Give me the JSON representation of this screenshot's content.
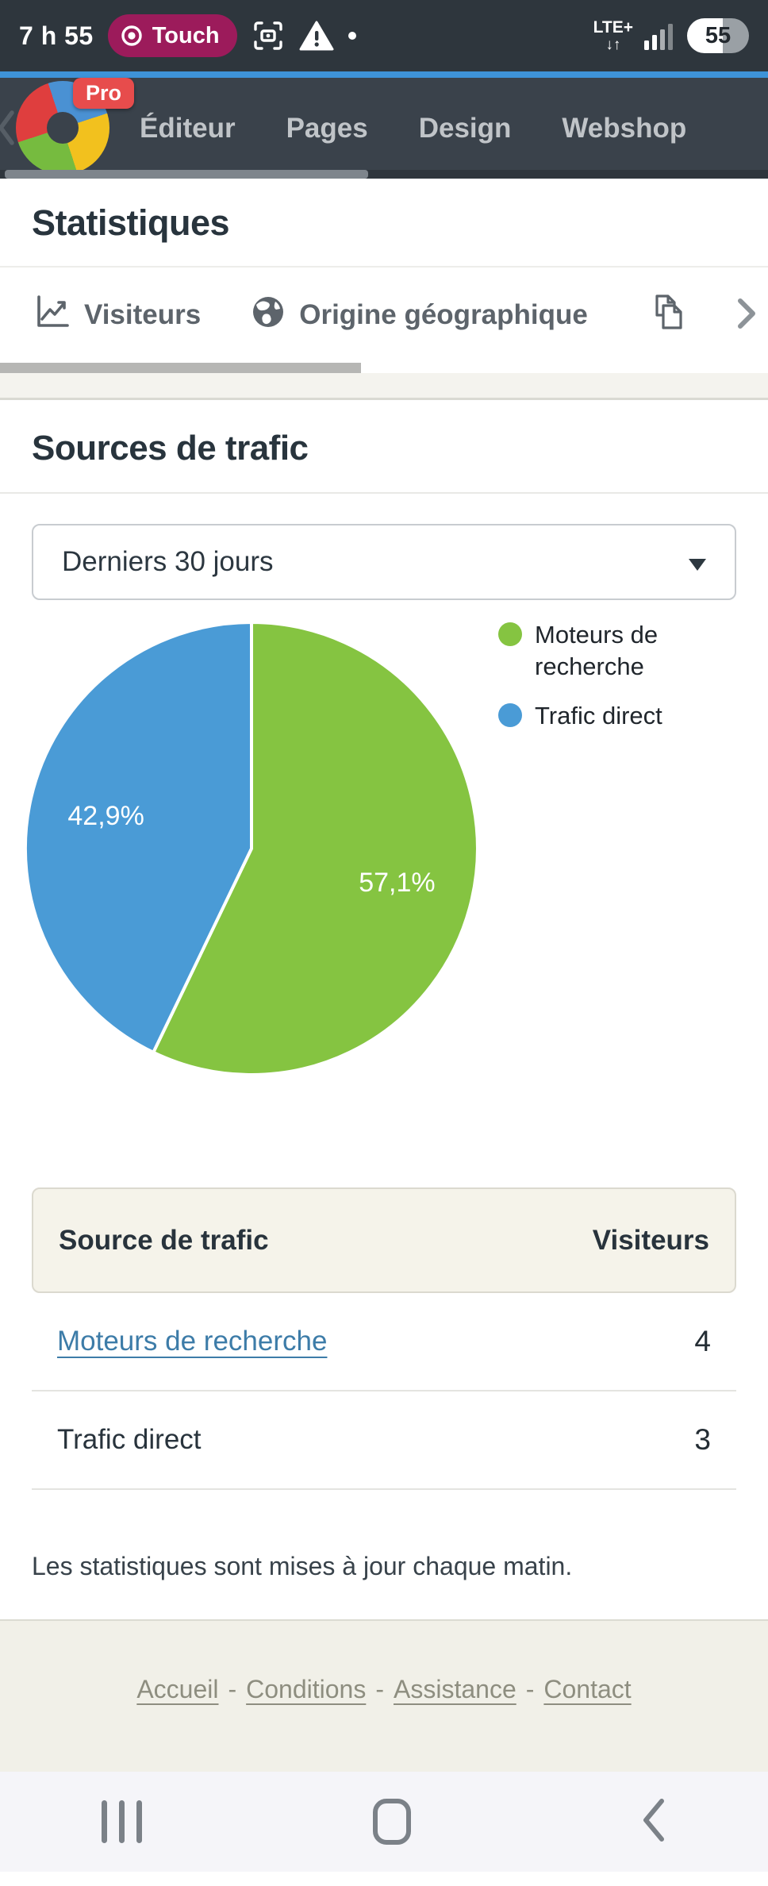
{
  "status_bar": {
    "time": "7 h 55",
    "touch_badge": "Touch",
    "network": "LTE+",
    "network_arrows": "↓↑",
    "battery_level": "55"
  },
  "navbar": {
    "pro_badge": "Pro",
    "items": [
      {
        "label": "Éditeur"
      },
      {
        "label": "Pages"
      },
      {
        "label": "Design"
      },
      {
        "label": "Webshop"
      }
    ]
  },
  "page": {
    "title": "Statistiques",
    "tabs": [
      {
        "label": "Visiteurs"
      },
      {
        "label": "Origine géographique"
      }
    ],
    "section_title": "Sources de trafic",
    "period_select": {
      "value": "Derniers 30 jours"
    },
    "note": "Les statistiques sont mises à jour chaque matin."
  },
  "chart_data": {
    "type": "pie",
    "title": "Sources de trafic",
    "period": "Derniers 30 jours",
    "legend_position": "right",
    "start_angle_deg": 0,
    "direction": "clockwise",
    "slices": [
      {
        "name": "Moteurs de recherche",
        "value": 4,
        "pct": 57.1,
        "pct_label": "57,1%",
        "color": "#85c441"
      },
      {
        "name": "Trafic direct",
        "value": 3,
        "pct": 42.9,
        "pct_label": "42,9%",
        "color": "#4a9bd6"
      }
    ]
  },
  "table": {
    "headers": [
      "Source de trafic",
      "Visiteurs"
    ],
    "rows": [
      {
        "label": "Moteurs de recherche",
        "value": "4",
        "is_link": true
      },
      {
        "label": "Trafic direct",
        "value": "3",
        "is_link": false
      }
    ]
  },
  "footer": {
    "separator": "-",
    "links": [
      {
        "label": "Accueil"
      },
      {
        "label": "Conditions"
      },
      {
        "label": "Assistance"
      },
      {
        "label": "Contact"
      }
    ]
  },
  "colors": {
    "green": "#85c441",
    "blue": "#4a9bd6",
    "statusbar_bg": "#2e363d",
    "navbar_bg": "#3a424b",
    "accent_line": "#3e93d8",
    "touch_badge_bg": "#9c1b5b",
    "pro_badge_bg": "#e74c4c",
    "link": "#3d7ca8",
    "table_header_bg": "#f5f3ea",
    "footer_bg": "#f1f0e8"
  }
}
